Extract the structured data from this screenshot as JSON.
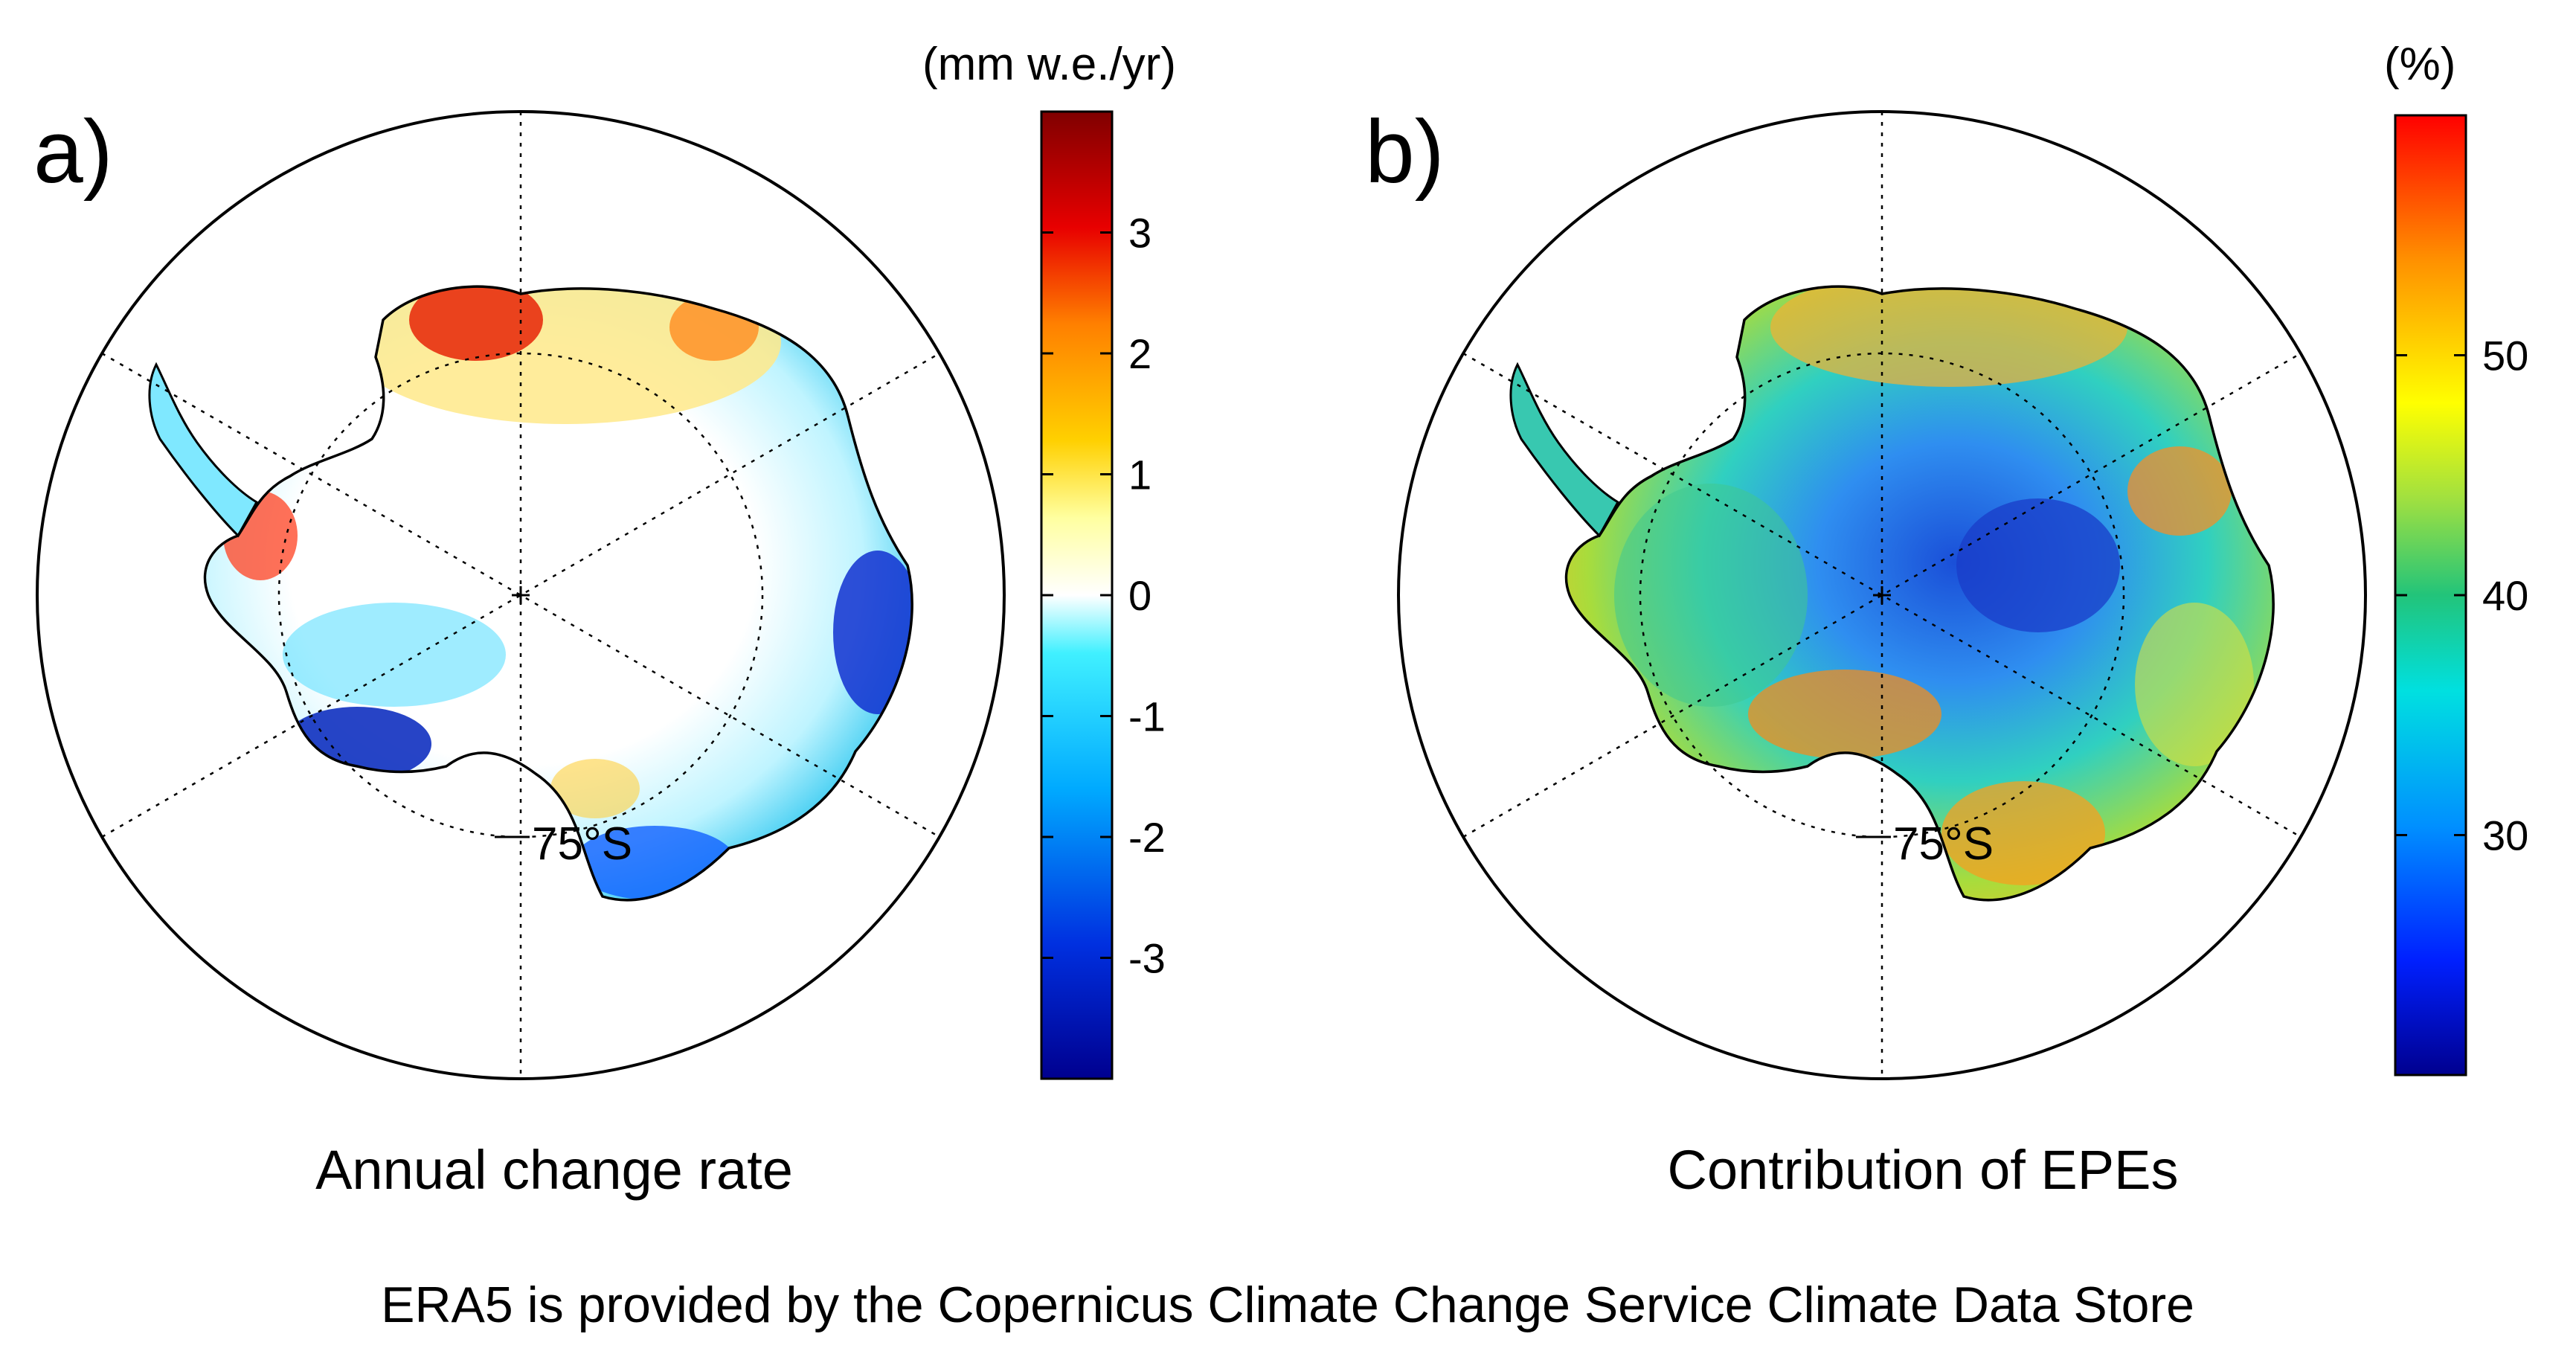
{
  "panels": [
    {
      "label": "a)",
      "caption": "Annual change rate",
      "colorbar_unit": "(mm w.e./yr)",
      "colorbar_ticks": [
        "3",
        "2",
        "1",
        "0",
        "-1",
        "-2",
        "-3"
      ],
      "colorbar_values": [
        3,
        2,
        1,
        0,
        -1,
        -2,
        -3
      ],
      "colorbar_range": [
        -4,
        4
      ],
      "colormap": [
        "#00008f",
        "#0050ff",
        "#00d4ff",
        "#ffffff",
        "#ffe24a",
        "#ff8000",
        "#e00000",
        "#800000"
      ],
      "latitude_label": "75°S"
    },
    {
      "label": "b)",
      "caption": "Contribution of EPEs",
      "colorbar_unit": "(%)",
      "colorbar_ticks": [
        "50",
        "40",
        "30"
      ],
      "colorbar_values": [
        50,
        40,
        30
      ],
      "colorbar_range": [
        20,
        60
      ],
      "colormap": [
        "#00008f",
        "#0050ff",
        "#00d4ff",
        "#22c47a",
        "#ffff00",
        "#ff9000",
        "#ff0000"
      ],
      "latitude_label": "75°S"
    }
  ],
  "credit": "ERA5 is provided by the Copernicus Climate Change Service Climate Data Store"
}
